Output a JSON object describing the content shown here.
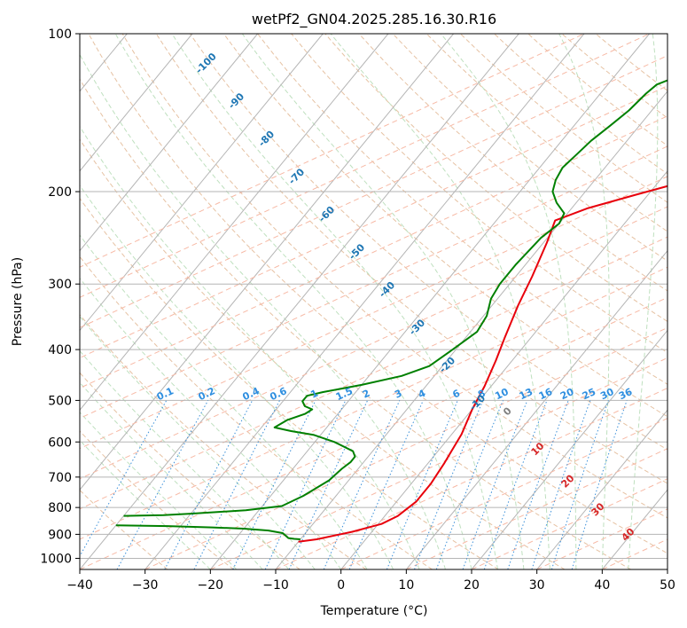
{
  "chart_data": {
    "type": "line",
    "title": "wetPf2_GN04.2025.285.16.30.R16",
    "xlabel": "Temperature (°C)",
    "ylabel": "Pressure (hPa)",
    "xlim": [
      -40,
      50
    ],
    "ylim": [
      1050,
      100
    ],
    "y_scale": "log",
    "grid": true,
    "x_ticks": [
      "−40",
      "−30",
      "−20",
      "−10",
      "0",
      "10",
      "20",
      "30",
      "40",
      "50"
    ],
    "y_ticks": [
      "100",
      "200",
      "300",
      "400",
      "500",
      "600",
      "700",
      "800",
      "900",
      "1000"
    ],
    "series": [
      {
        "color": "#e8000b",
        "points": [
          [
            -10,
            930
          ],
          [
            -7.5,
            920
          ],
          [
            -3,
            890
          ],
          [
            0.5,
            860
          ],
          [
            2,
            830
          ],
          [
            3,
            780
          ],
          [
            3,
            720
          ],
          [
            2.5,
            660
          ],
          [
            2,
            620
          ],
          [
            1.5,
            580
          ],
          [
            0,
            520
          ],
          [
            -1,
            470
          ],
          [
            -2.5,
            420
          ],
          [
            -4,
            380
          ],
          [
            -6,
            330
          ],
          [
            -7.5,
            290
          ],
          [
            -9.5,
            250
          ],
          [
            -11,
            227
          ],
          [
            -7.5,
            215
          ],
          [
            -2,
            203
          ],
          [
            3,
            193
          ],
          [
            12,
            175
          ],
          [
            16,
            160
          ],
          [
            19,
            150
          ],
          [
            21,
            140
          ],
          [
            24,
            130
          ],
          [
            25.5,
            120
          ],
          [
            32,
            107
          ],
          [
            34,
            100
          ]
        ]
      },
      {
        "color": "#008000",
        "points": [
          [
            -40,
            830
          ],
          [
            -34,
            827
          ],
          [
            -30,
            822
          ],
          [
            -22,
            810
          ],
          [
            -17,
            795
          ],
          [
            -15,
            760
          ],
          [
            -13,
            710
          ],
          [
            -12.5,
            675
          ],
          [
            -12,
            655
          ],
          [
            -12,
            640
          ],
          [
            -13,
            625
          ],
          [
            -17,
            600
          ],
          [
            -21,
            582
          ],
          [
            -25,
            572
          ],
          [
            -28,
            563
          ],
          [
            -27,
            545
          ],
          [
            -25,
            530
          ],
          [
            -24.5,
            520
          ],
          [
            -26,
            513
          ],
          [
            -27,
            502
          ],
          [
            -27,
            490
          ],
          [
            -25,
            482
          ],
          [
            -20,
            467
          ],
          [
            -15,
            449
          ],
          [
            -12,
            430
          ],
          [
            -10.5,
            400
          ],
          [
            -9,
            370
          ],
          [
            -9.5,
            345
          ],
          [
            -11,
            320
          ],
          [
            -11.5,
            300
          ],
          [
            -11.5,
            275
          ],
          [
            -11,
            245
          ],
          [
            -10,
            230
          ],
          [
            -10.5,
            220
          ],
          [
            -13,
            210
          ],
          [
            -15,
            200
          ],
          [
            -16,
            190
          ],
          [
            -16.5,
            180
          ],
          [
            -16,
            170
          ],
          [
            -15.5,
            160
          ],
          [
            -14.5,
            150
          ],
          [
            -13.5,
            140
          ],
          [
            -13,
            130
          ],
          [
            -12.5,
            125
          ],
          [
            -10,
            120
          ],
          [
            -8.5,
            115
          ],
          [
            -8,
            110
          ],
          [
            -9,
            106
          ],
          [
            -12,
            103
          ],
          [
            -13,
            100
          ]
        ]
      },
      {
        "color": "#008000",
        "points": [
          [
            -40,
            865
          ],
          [
            -32,
            868
          ],
          [
            -25,
            873
          ],
          [
            -20,
            878
          ],
          [
            -16,
            885
          ],
          [
            -13.5,
            895
          ],
          [
            -12.5,
            908
          ],
          [
            -12,
            915
          ],
          [
            -11,
            918
          ],
          [
            -10,
            920
          ]
        ]
      }
    ],
    "dry_adiabat_labels": [
      "-100",
      "-90",
      "-80",
      "-70",
      "-60",
      "-50",
      "-40",
      "-30",
      "-20",
      "-10",
      "0",
      "10",
      "20",
      "30",
      "40"
    ],
    "mixing_ratio_labels": [
      "0.1",
      "0.2",
      "0.4",
      "0.6",
      "1",
      "1.5",
      "2",
      "3",
      "4",
      "6",
      "8",
      "10",
      "13",
      "16",
      "20",
      "25",
      "30",
      "36"
    ]
  }
}
